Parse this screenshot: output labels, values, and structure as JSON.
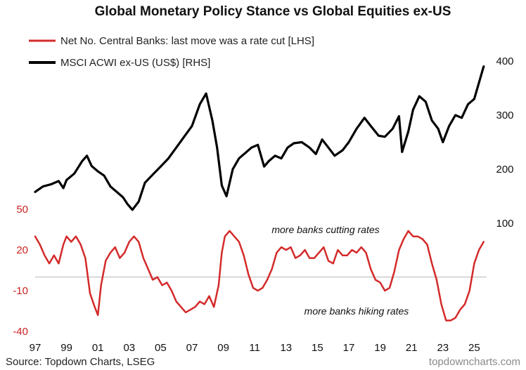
{
  "chart_data": {
    "type": "line",
    "title": "Global Monetary Policy Stance vs Global Equities ex-US",
    "x_tick_labels": [
      "97",
      "99",
      "01",
      "03",
      "05",
      "07",
      "09",
      "11",
      "13",
      "15",
      "17",
      "19",
      "21",
      "23",
      "25"
    ],
    "x_range": [
      1997,
      2025.7
    ],
    "right_axis": {
      "ticks": [
        "100",
        "200",
        "300",
        "400"
      ],
      "range": [
        100,
        400
      ]
    },
    "left_axis": {
      "ticks": [
        "50",
        "20",
        "-10",
        "-40"
      ],
      "range": [
        -40,
        50
      ]
    },
    "series": [
      {
        "name": "Net No. Central Banks: last move was a rate cut [LHS]",
        "axis": "left",
        "color": "#d42a2a",
        "x": [
          1997.0,
          1997.3,
          1997.6,
          1997.9,
          1998.2,
          1998.5,
          1998.8,
          1999.0,
          1999.3,
          1999.6,
          1999.9,
          2000.2,
          2000.5,
          2000.8,
          2001.0,
          2001.2,
          2001.5,
          2001.8,
          2002.1,
          2002.4,
          2002.7,
          2003.0,
          2003.3,
          2003.6,
          2003.9,
          2004.2,
          2004.5,
          2004.8,
          2005.1,
          2005.4,
          2005.7,
          2006.0,
          2006.3,
          2006.6,
          2006.9,
          2007.2,
          2007.5,
          2007.8,
          2008.1,
          2008.4,
          2008.7,
          2008.9,
          2009.1,
          2009.4,
          2009.7,
          2010.0,
          2010.3,
          2010.6,
          2010.9,
          2011.2,
          2011.5,
          2011.8,
          2012.1,
          2012.4,
          2012.7,
          2013.0,
          2013.3,
          2013.6,
          2013.9,
          2014.2,
          2014.5,
          2014.8,
          2015.1,
          2015.4,
          2015.7,
          2016.0,
          2016.3,
          2016.6,
          2016.9,
          2017.2,
          2017.5,
          2017.8,
          2018.1,
          2018.4,
          2018.7,
          2019.0,
          2019.3,
          2019.6,
          2019.9,
          2020.2,
          2020.5,
          2020.8,
          2021.1,
          2021.4,
          2021.7,
          2022.0,
          2022.3,
          2022.6,
          2022.9,
          2023.2,
          2023.5,
          2023.8,
          2024.1,
          2024.4,
          2024.7,
          2025.0,
          2025.3,
          2025.6
        ],
        "values": [
          30,
          24,
          16,
          10,
          16,
          10,
          24,
          30,
          26,
          30,
          24,
          14,
          -12,
          -22,
          -28,
          -6,
          12,
          18,
          22,
          14,
          18,
          26,
          30,
          26,
          14,
          6,
          -2,
          0,
          -6,
          -4,
          -10,
          -18,
          -22,
          -26,
          -24,
          -22,
          -18,
          -20,
          -14,
          -22,
          -6,
          18,
          30,
          34,
          30,
          26,
          16,
          2,
          -8,
          -10,
          -8,
          -2,
          6,
          18,
          22,
          20,
          22,
          14,
          16,
          20,
          14,
          14,
          18,
          22,
          12,
          10,
          20,
          16,
          16,
          20,
          18,
          22,
          18,
          6,
          -2,
          -4,
          -10,
          -8,
          4,
          20,
          28,
          34,
          30,
          30,
          28,
          24,
          10,
          -2,
          -20,
          -32,
          -32,
          -30,
          -24,
          -20,
          -10,
          10,
          20,
          26
        ]
      },
      {
        "name": "MSCI ACWI ex-US (US$) [RHS]",
        "axis": "right",
        "color": "#000000",
        "x": [
          1997.0,
          1997.5,
          1998.0,
          1998.5,
          1998.8,
          1999.0,
          1999.5,
          2000.0,
          2000.3,
          2000.6,
          2001.0,
          2001.4,
          2001.8,
          2002.2,
          2002.6,
          2002.9,
          2003.2,
          2003.6,
          2004.0,
          2004.5,
          2005.0,
          2005.5,
          2006.0,
          2006.5,
          2007.0,
          2007.5,
          2007.9,
          2008.3,
          2008.6,
          2008.9,
          2009.2,
          2009.6,
          2010.0,
          2010.4,
          2010.8,
          2011.2,
          2011.6,
          2011.9,
          2012.3,
          2012.7,
          2013.1,
          2013.5,
          2014.0,
          2014.5,
          2014.9,
          2015.3,
          2015.7,
          2016.1,
          2016.6,
          2017.0,
          2017.5,
          2018.0,
          2018.4,
          2018.9,
          2019.3,
          2019.8,
          2020.2,
          2020.4,
          2020.8,
          2021.1,
          2021.5,
          2021.9,
          2022.3,
          2022.7,
          2023.0,
          2023.4,
          2023.8,
          2024.2,
          2024.6,
          2025.0,
          2025.3,
          2025.6
        ],
        "values": [
          158,
          168,
          172,
          178,
          165,
          180,
          192,
          215,
          225,
          206,
          196,
          188,
          168,
          158,
          148,
          135,
          125,
          140,
          175,
          190,
          205,
          220,
          240,
          260,
          280,
          320,
          340,
          290,
          240,
          170,
          150,
          200,
          220,
          230,
          240,
          245,
          205,
          215,
          225,
          220,
          240,
          248,
          250,
          240,
          228,
          255,
          240,
          225,
          235,
          250,
          275,
          295,
          280,
          262,
          260,
          275,
          298,
          232,
          270,
          310,
          335,
          325,
          290,
          275,
          250,
          280,
          300,
          295,
          320,
          330,
          360,
          390
        ]
      }
    ],
    "annotations": [
      "more banks cutting rates",
      "more banks hiking rates"
    ],
    "grid": false,
    "legend_position": "top-left"
  },
  "legend": {
    "red_label": "Net No. Central Banks: last move was a rate cut [LHS]",
    "black_label": "MSCI ACWI ex-US (US$) [RHS]"
  },
  "footer": {
    "source": "Source: Topdown Charts, LSEG",
    "watermark": "topdowncharts.com"
  }
}
